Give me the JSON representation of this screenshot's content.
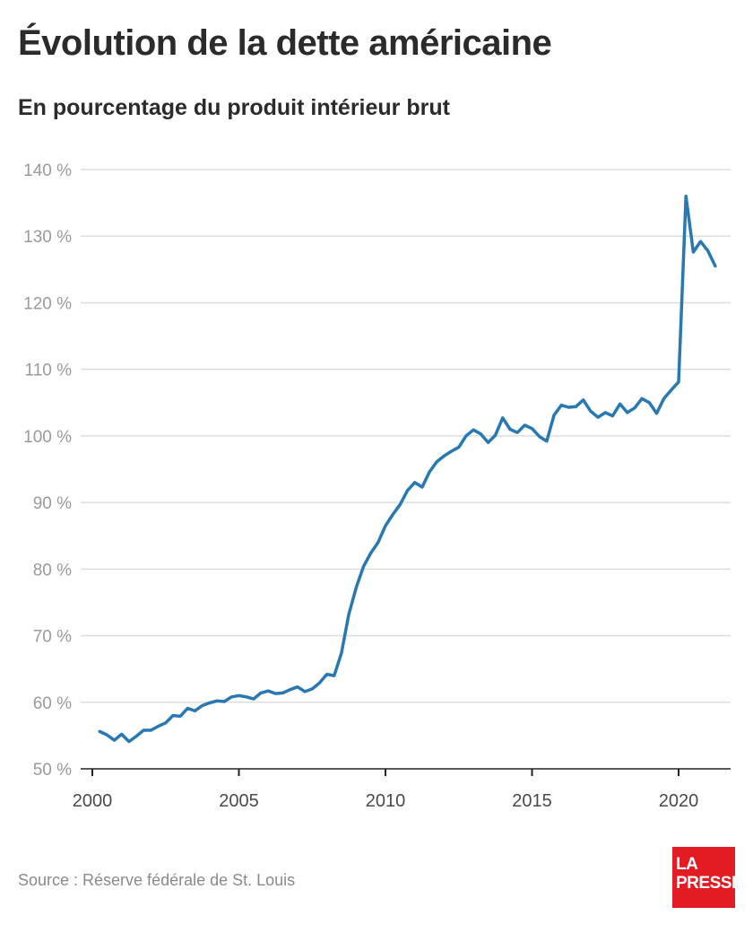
{
  "title": "Évolution de la dette américaine",
  "subtitle": "En pourcentage du produit intérieur brut",
  "source": "Source : Réserve fédérale de St. Louis",
  "logo": {
    "line1": "LA",
    "line2": "PRESSE"
  },
  "colors": {
    "line": "#2878b4",
    "grid": "#dddddd",
    "tick_label": "#9a9a9a",
    "axis": "#222222",
    "logo_bg": "#e31b23"
  },
  "chart_data": {
    "type": "line",
    "title": "Évolution de la dette américaine",
    "subtitle": "En pourcentage du produit intérieur brut",
    "xlabel": "",
    "ylabel": "",
    "ylim": [
      50,
      140
    ],
    "xlim": [
      2000,
      2021.75
    ],
    "y_ticks": [
      50,
      60,
      70,
      80,
      90,
      100,
      110,
      120,
      130,
      140
    ],
    "y_tick_labels": [
      "50 %",
      "60 %",
      "70 %",
      "80 %",
      "90 %",
      "100 %",
      "110 %",
      "120 %",
      "130 %",
      "140 %"
    ],
    "x_ticks": [
      2000,
      2005,
      2010,
      2015,
      2020
    ],
    "x_tick_labels": [
      "2000",
      "2005",
      "2010",
      "2015",
      "2020"
    ],
    "grid": true,
    "series": [
      {
        "x": [
          2000.25,
          2000.5,
          2000.75,
          2001.0,
          2001.25,
          2001.5,
          2001.75,
          2002.0,
          2002.25,
          2002.5,
          2002.75,
          2003.0,
          2003.25,
          2003.5,
          2003.75,
          2004.0,
          2004.25,
          2004.5,
          2004.75,
          2005.0,
          2005.25,
          2005.5,
          2005.75,
          2006.0,
          2006.25,
          2006.5,
          2006.75,
          2007.0,
          2007.25,
          2007.5,
          2007.75,
          2008.0,
          2008.25,
          2008.5,
          2008.75,
          2009.0,
          2009.25,
          2009.5,
          2009.75,
          2010.0,
          2010.25,
          2010.5,
          2010.75,
          2011.0,
          2011.25,
          2011.5,
          2011.75,
          2012.0,
          2012.25,
          2012.5,
          2012.75,
          2013.0,
          2013.25,
          2013.5,
          2013.75,
          2014.0,
          2014.25,
          2014.5,
          2014.75,
          2015.0,
          2015.25,
          2015.5,
          2015.75,
          2016.0,
          2016.25,
          2016.5,
          2016.75,
          2017.0,
          2017.25,
          2017.5,
          2017.75,
          2018.0,
          2018.25,
          2018.5,
          2018.75,
          2019.0,
          2019.25,
          2019.5,
          2019.75,
          2020.0,
          2020.25,
          2020.5,
          2020.75,
          2021.0,
          2021.25
        ],
        "y": [
          55.6,
          55.1,
          54.3,
          55.2,
          54.1,
          54.9,
          55.8,
          55.8,
          56.4,
          56.9,
          58.0,
          57.9,
          59.1,
          58.7,
          59.5,
          59.9,
          60.2,
          60.1,
          60.8,
          61.0,
          60.8,
          60.5,
          61.4,
          61.7,
          61.3,
          61.4,
          61.9,
          62.3,
          61.6,
          62.0,
          62.9,
          64.2,
          64.0,
          67.4,
          73.2,
          77.2,
          80.4,
          82.4,
          84.0,
          86.5,
          88.2,
          89.7,
          91.8,
          93.0,
          92.3,
          94.6,
          96.1,
          97.0,
          97.7,
          98.3,
          100.0,
          100.9,
          100.3,
          99.0,
          100.1,
          102.7,
          101.0,
          100.5,
          101.6,
          101.1,
          99.9,
          99.2,
          103.1,
          104.6,
          104.3,
          104.4,
          105.4,
          103.7,
          102.8,
          103.5,
          103.0,
          104.8,
          103.5,
          104.2,
          105.6,
          105.0,
          103.4,
          105.6,
          106.9,
          108.1,
          136.0,
          127.6,
          129.2,
          127.8,
          125.5
        ]
      }
    ]
  }
}
